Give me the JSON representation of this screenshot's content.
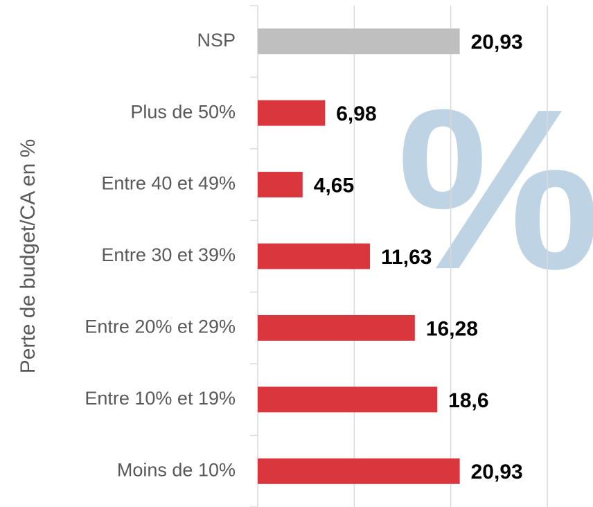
{
  "chart_data": {
    "type": "barh",
    "y_label": "Perte de budget/CA en %",
    "watermark": "%",
    "categories": [
      "NSP",
      "Plus de 50%",
      "Entre 40 et 49%",
      "Entre 30 et 39%",
      "Entre 20% et 29%",
      "Entre 10% et 19%",
      "Moins de 10%"
    ],
    "values": [
      20.93,
      6.98,
      4.65,
      11.63,
      16.28,
      18.6,
      20.93
    ],
    "value_labels": [
      "20,93",
      "6,98",
      "4,65",
      "11,63",
      "16,28",
      "18,6",
      "20,93"
    ],
    "colors": [
      "#bfbfbf",
      "#d9363e",
      "#d9363e",
      "#d9363e",
      "#d9363e",
      "#d9363e",
      "#d9363e"
    ],
    "xlim": [
      0,
      30
    ],
    "xticks": [
      0,
      10,
      20,
      30
    ],
    "grid": true
  }
}
